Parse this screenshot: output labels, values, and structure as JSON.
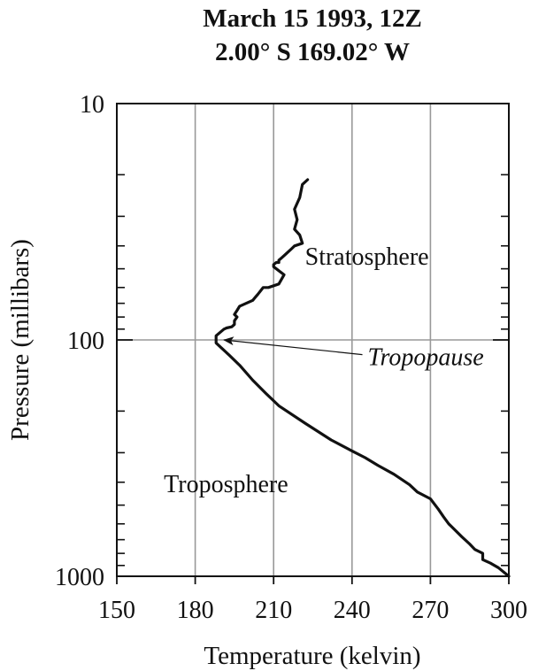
{
  "chart_data": {
    "type": "line",
    "title": "March 15 1993, 12Z",
    "subtitle": "2.00° S 169.02° W",
    "xlabel": "Temperature (kelvin)",
    "ylabel": "Pressure (millibars)",
    "xlim": [
      150,
      300
    ],
    "ylim": [
      10,
      1000
    ],
    "y_scale": "log",
    "y_inverted": true,
    "grid": true,
    "x_ticks": [
      150,
      180,
      210,
      240,
      270,
      300
    ],
    "x_tick_labels": [
      "150",
      "180",
      "210",
      "240",
      "270",
      "300"
    ],
    "y_ticks": [
      10,
      100,
      1000
    ],
    "y_tick_labels": [
      "10",
      "100",
      "1000"
    ],
    "colors": {
      "line": "#111111",
      "grid": "#999999",
      "frame": "#111111"
    },
    "series": [
      {
        "x": [
          223,
          221,
          220,
          218,
          219,
          218,
          220,
          221,
          218,
          217,
          215,
          214,
          213,
          212,
          212,
          211,
          210,
          210,
          214,
          212,
          208,
          206,
          205,
          204,
          203,
          202,
          197,
          196,
          195,
          196,
          195,
          195,
          194,
          192,
          191,
          190,
          188,
          188,
          188,
          190,
          193,
          197,
          202,
          207,
          212,
          222,
          232,
          240,
          245,
          250,
          256,
          262,
          265,
          270,
          273,
          275,
          277,
          282,
          285,
          287,
          290,
          290,
          293,
          296,
          300
        ],
        "y": [
          21,
          22,
          25,
          28,
          31,
          34,
          36,
          39,
          40,
          41,
          43,
          44,
          45,
          46,
          47,
          47,
          48,
          49,
          53,
          58,
          60,
          60,
          62,
          64,
          66,
          68,
          72,
          75,
          78,
          80,
          83,
          86,
          88,
          89,
          90,
          92,
          96,
          100,
          103,
          108,
          116,
          128,
          148,
          168,
          190,
          225,
          265,
          295,
          315,
          340,
          370,
          410,
          440,
          470,
          520,
          560,
          600,
          680,
          730,
          770,
          800,
          850,
          880,
          920,
          1000
        ]
      }
    ],
    "annotations": [
      {
        "text": "Stratosphere",
        "x": 222,
        "y": 48
      },
      {
        "text": "Tropopause",
        "x": 246,
        "y": 128,
        "style": "italic",
        "arrow_to": {
          "x": 191,
          "y": 100
        }
      },
      {
        "text": "Troposphere",
        "x": 168,
        "y": 440
      }
    ]
  }
}
